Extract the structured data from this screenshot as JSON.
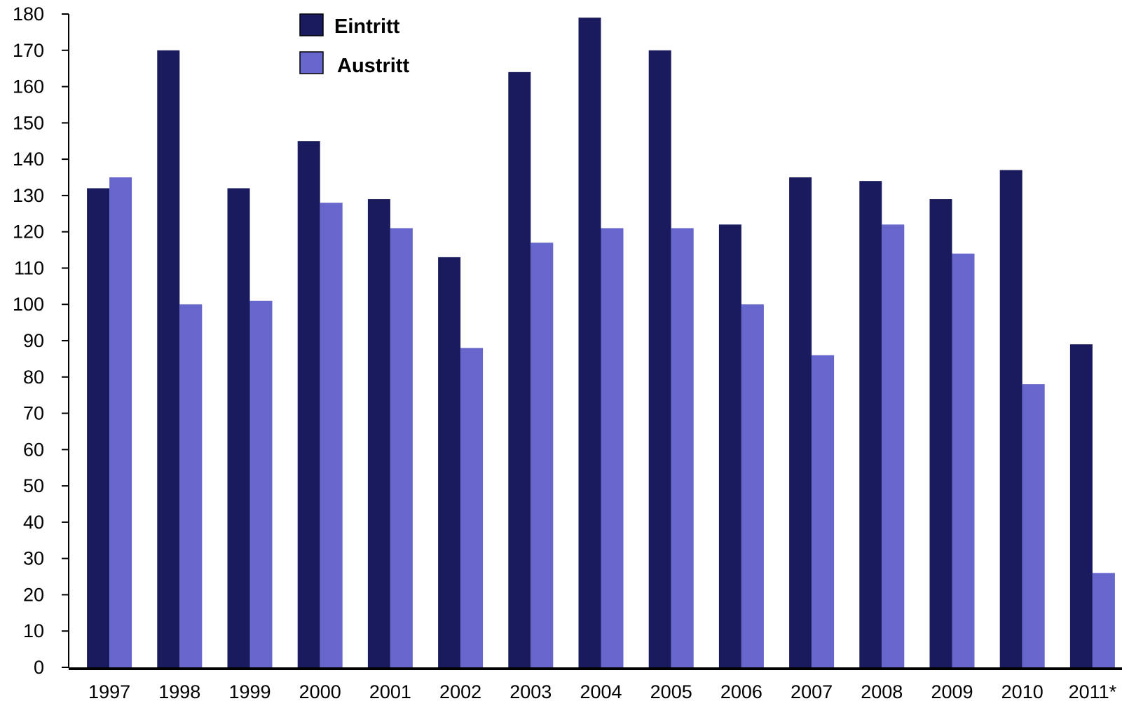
{
  "chart_data": {
    "type": "bar",
    "categories": [
      "1997",
      "1998",
      "1999",
      "2000",
      "2001",
      "2002",
      "2003",
      "2004",
      "2005",
      "2006",
      "2007",
      "2008",
      "2009",
      "2010",
      "2011*"
    ],
    "series": [
      {
        "name": "Eintritt",
        "color": "#1a1a5e",
        "values": [
          132,
          170,
          132,
          145,
          129,
          113,
          164,
          179,
          170,
          122,
          135,
          134,
          129,
          137,
          89
        ]
      },
      {
        "name": "Austritt",
        "color": "#6666cc",
        "values": [
          135,
          100,
          101,
          128,
          121,
          88,
          117,
          121,
          121,
          100,
          86,
          122,
          114,
          78,
          26
        ]
      }
    ],
    "ylim": [
      0,
      180
    ],
    "yticks": [
      0,
      10,
      20,
      30,
      40,
      50,
      60,
      70,
      80,
      90,
      100,
      110,
      120,
      130,
      140,
      150,
      160,
      170,
      180
    ],
    "grid": false,
    "legend_position": "top-center"
  }
}
